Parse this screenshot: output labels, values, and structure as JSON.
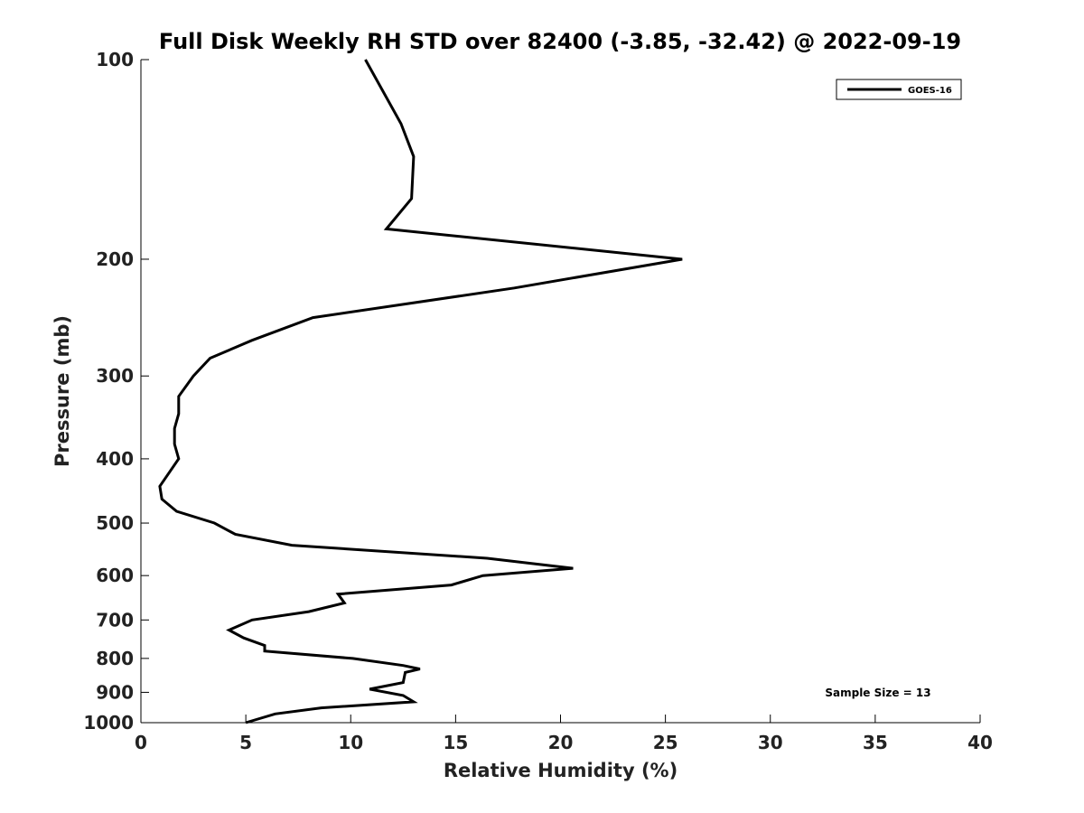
{
  "chart_data": {
    "type": "line",
    "title": "Full Disk Weekly RH STD over 82400 (-3.85, -32.42) @ 2022-09-19",
    "xlabel": "Relative Humidity (%)",
    "ylabel": "Pressure (mb)",
    "xlim": [
      0,
      40
    ],
    "ylim": [
      100,
      1000
    ],
    "y_scale": "log",
    "y_reversed": true,
    "x_ticks": [
      0,
      5,
      10,
      15,
      20,
      25,
      30,
      35,
      40
    ],
    "y_ticks": [
      100,
      200,
      300,
      400,
      500,
      600,
      700,
      800,
      900,
      1000
    ],
    "grid": false,
    "legend": {
      "placement": "top-right",
      "entries": [
        "GOES-16"
      ]
    },
    "annotation": "Sample Size = 13",
    "series": [
      {
        "name": "GOES-16",
        "color": "#000000",
        "x": [
          10.7,
          12.4,
          13.0,
          12.9,
          11.7,
          25.8,
          17.8,
          8.2,
          5.3,
          3.3,
          2.5,
          1.8,
          1.8,
          1.6,
          1.6,
          1.8,
          0.9,
          1.0,
          1.7,
          3.5,
          4.5,
          7.2,
          16.5,
          20.6,
          16.3,
          14.8,
          9.4,
          9.7,
          8.0,
          5.3,
          4.2,
          4.9,
          5.9,
          5.9,
          10.1,
          12.5,
          13.3,
          12.6,
          12.5,
          10.9,
          12.5,
          13.0,
          8.6,
          6.4,
          5.0
        ],
        "y": [
          100,
          125,
          140,
          162,
          180,
          200,
          221,
          245,
          265,
          282,
          300,
          322,
          342,
          360,
          380,
          400,
          440,
          460,
          480,
          500,
          520,
          540,
          565,
          585,
          600,
          620,
          640,
          660,
          680,
          700,
          725,
          745,
          765,
          780,
          800,
          820,
          830,
          840,
          870,
          890,
          910,
          930,
          950,
          970,
          1000
        ]
      }
    ]
  }
}
